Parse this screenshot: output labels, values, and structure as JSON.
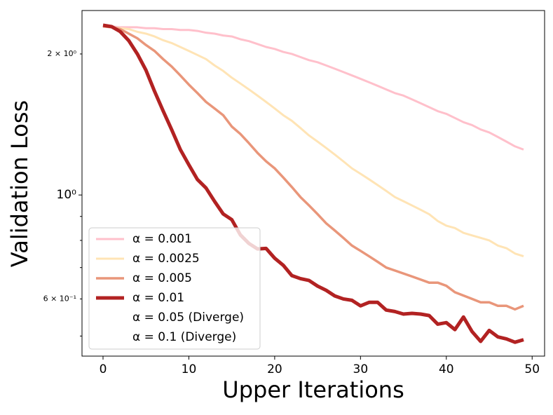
{
  "chart_data": {
    "type": "line",
    "xlabel": "Upper Iterations",
    "ylabel": "Validation Loss",
    "x": [
      0,
      1,
      2,
      3,
      4,
      5,
      6,
      7,
      8,
      9,
      10,
      11,
      12,
      13,
      14,
      15,
      16,
      17,
      18,
      19,
      20,
      21,
      22,
      23,
      24,
      25,
      26,
      27,
      28,
      29,
      30,
      31,
      32,
      33,
      34,
      35,
      36,
      37,
      38,
      39,
      40,
      41,
      42,
      43,
      44,
      45,
      46,
      47,
      48,
      49
    ],
    "xlim": [
      -2.45,
      51.45
    ],
    "xticks": [
      0,
      10,
      20,
      30,
      40,
      50
    ],
    "ylim": [
      0.453,
      2.476
    ],
    "yscale": "log",
    "yticks": [
      {
        "value": 0.6,
        "label": "6 × 10⁻¹"
      },
      {
        "value": 1,
        "label": "10⁰"
      },
      {
        "value": 2,
        "label": "2 × 10⁰"
      }
    ],
    "yminor_ticks": [
      0.5,
      0.7,
      0.8,
      0.9
    ],
    "grid": false,
    "legend": "lower left",
    "series": [
      {
        "name": "α = 0.001",
        "color": "#ffc0cb",
        "width": 3,
        "values": [
          2.29,
          2.29,
          2.28,
          2.28,
          2.28,
          2.27,
          2.27,
          2.26,
          2.26,
          2.25,
          2.25,
          2.24,
          2.22,
          2.21,
          2.19,
          2.18,
          2.15,
          2.13,
          2.1,
          2.07,
          2.05,
          2.02,
          2.0,
          1.97,
          1.94,
          1.92,
          1.89,
          1.86,
          1.83,
          1.8,
          1.77,
          1.74,
          1.71,
          1.68,
          1.65,
          1.63,
          1.6,
          1.57,
          1.54,
          1.51,
          1.49,
          1.46,
          1.43,
          1.41,
          1.38,
          1.36,
          1.33,
          1.3,
          1.27,
          1.25
        ]
      },
      {
        "name": "α = 0.0025",
        "color": "#ffe4b5",
        "width": 3,
        "values": [
          2.29,
          2.28,
          2.27,
          2.26,
          2.23,
          2.21,
          2.18,
          2.14,
          2.11,
          2.07,
          2.03,
          1.99,
          1.95,
          1.89,
          1.84,
          1.78,
          1.73,
          1.68,
          1.63,
          1.58,
          1.53,
          1.48,
          1.44,
          1.39,
          1.34,
          1.3,
          1.26,
          1.22,
          1.18,
          1.14,
          1.11,
          1.08,
          1.05,
          1.02,
          0.99,
          0.97,
          0.95,
          0.93,
          0.91,
          0.88,
          0.86,
          0.85,
          0.83,
          0.82,
          0.81,
          0.8,
          0.78,
          0.77,
          0.75,
          0.74
        ]
      },
      {
        "name": "α = 0.005",
        "color": "#e9967a",
        "width": 3.5,
        "values": [
          2.29,
          2.28,
          2.26,
          2.21,
          2.16,
          2.09,
          2.03,
          1.95,
          1.88,
          1.8,
          1.72,
          1.65,
          1.58,
          1.53,
          1.48,
          1.4,
          1.35,
          1.29,
          1.23,
          1.18,
          1.14,
          1.09,
          1.04,
          0.99,
          0.95,
          0.91,
          0.87,
          0.84,
          0.81,
          0.78,
          0.76,
          0.74,
          0.72,
          0.7,
          0.69,
          0.68,
          0.67,
          0.66,
          0.65,
          0.65,
          0.64,
          0.62,
          0.61,
          0.6,
          0.59,
          0.59,
          0.58,
          0.58,
          0.57,
          0.58
        ]
      },
      {
        "name": "α = 0.01",
        "color": "#b22222",
        "width": 5,
        "values": [
          2.303,
          2.288,
          2.233,
          2.135,
          2.0,
          1.847,
          1.665,
          1.512,
          1.378,
          1.251,
          1.16,
          1.079,
          1.035,
          0.969,
          0.911,
          0.886,
          0.822,
          0.788,
          0.767,
          0.769,
          0.733,
          0.708,
          0.673,
          0.663,
          0.657,
          0.639,
          0.626,
          0.609,
          0.6,
          0.596,
          0.58,
          0.59,
          0.59,
          0.568,
          0.564,
          0.557,
          0.559,
          0.557,
          0.553,
          0.53,
          0.534,
          0.516,
          0.549,
          0.511,
          0.487,
          0.514,
          0.498,
          0.493,
          0.485,
          0.491
        ]
      },
      {
        "name": "α = 0.05 (Diverge)",
        "color": "#ffffff",
        "width": 3,
        "values": [
          null,
          null,
          null,
          null,
          null,
          null,
          null,
          null,
          null,
          null,
          null,
          null,
          null,
          null,
          null,
          null,
          null,
          null,
          null,
          null,
          null,
          null,
          null,
          null,
          null,
          null,
          null,
          null,
          null,
          null,
          null,
          null,
          null,
          null,
          null,
          null,
          null,
          null,
          null,
          null,
          null,
          null,
          null,
          null,
          null,
          null,
          null,
          null,
          null,
          null
        ]
      },
      {
        "name": "α = 0.1 (Diverge)",
        "color": "#ffffff",
        "width": 3,
        "values": [
          null,
          null,
          null,
          null,
          null,
          null,
          null,
          null,
          null,
          null,
          null,
          null,
          null,
          null,
          null,
          null,
          null,
          null,
          null,
          null,
          null,
          null,
          null,
          null,
          null,
          null,
          null,
          null,
          null,
          null,
          null,
          null,
          null,
          null,
          null,
          null,
          null,
          null,
          null,
          null,
          null,
          null,
          null,
          null,
          null,
          null,
          null,
          null,
          null,
          null
        ]
      }
    ]
  }
}
